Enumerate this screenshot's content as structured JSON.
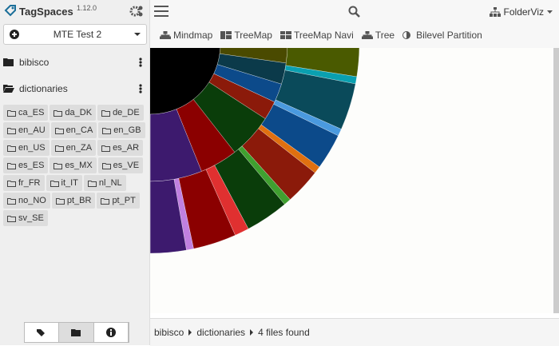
{
  "app": {
    "name": "TagSpaces",
    "version": "1.12.0"
  },
  "location": "MTE Test 2",
  "folders": [
    "bibisco",
    "dictionaries"
  ],
  "subfolders": [
    "ca_ES",
    "da_DK",
    "de_DE",
    "en_AU",
    "en_CA",
    "en_GB",
    "en_US",
    "en_ZA",
    "es_AR",
    "es_ES",
    "es_MX",
    "es_VE",
    "fr_FR",
    "it_IT",
    "nl_NL",
    "no_NO",
    "pt_BR",
    "pt_PT",
    "sv_SE"
  ],
  "perspective": "FolderViz",
  "views": [
    "Mindmap",
    "TreeMap",
    "TreeMap Navi",
    "Tree",
    "Bilevel Partition"
  ],
  "breadcrumb": [
    "bibisco",
    "dictionaries"
  ],
  "status": "4 files found"
}
